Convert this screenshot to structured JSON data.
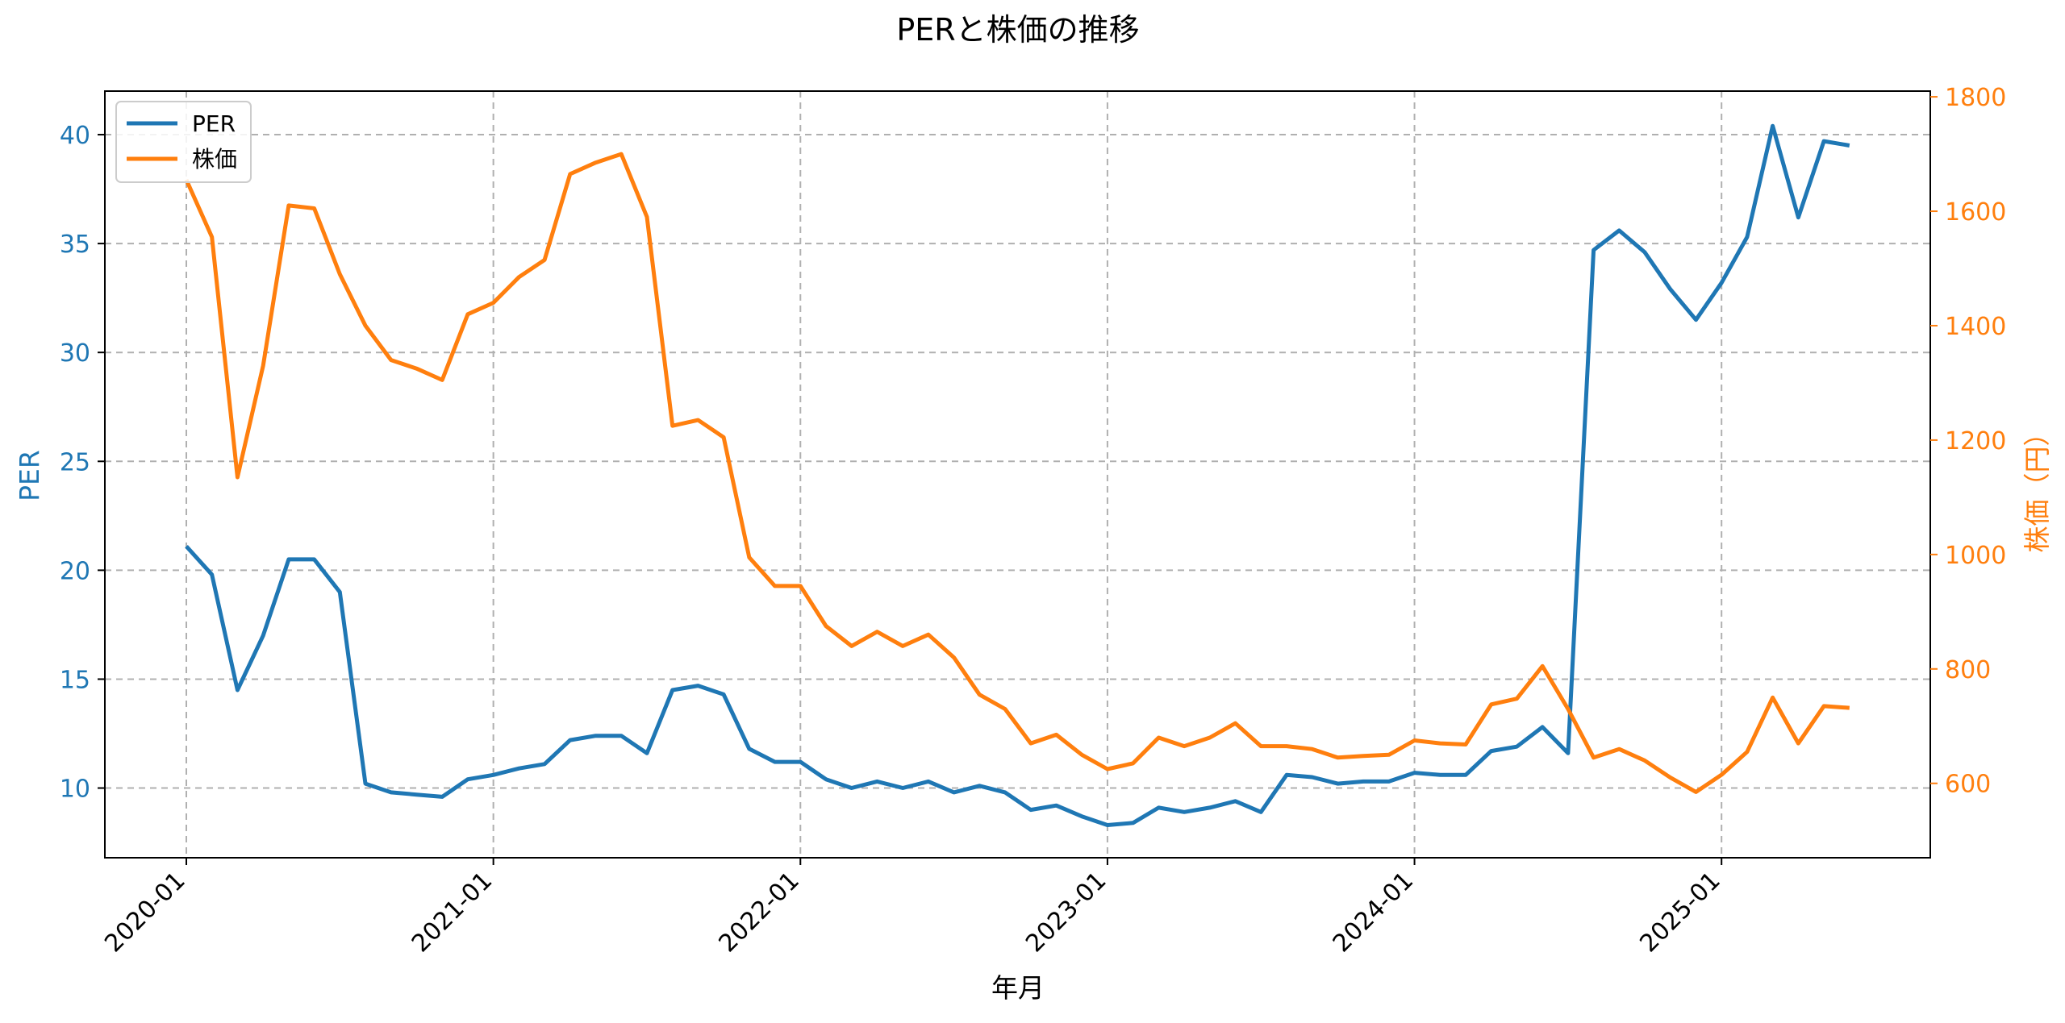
{
  "chart_data": {
    "type": "line",
    "title": "PERと株価の推移",
    "xlabel": "年月",
    "ylabel_left": "PER",
    "ylabel_right": "株価（円）",
    "ylim_left": [
      6.8,
      42
    ],
    "ylim_right": [
      470,
      1810
    ],
    "x_tick_labels": [
      "2020-01",
      "2021-01",
      "2022-01",
      "2023-01",
      "2024-01",
      "2025-01"
    ],
    "y_left_ticks": [
      10,
      15,
      20,
      25,
      30,
      35,
      40
    ],
    "y_right_ticks": [
      600,
      800,
      1000,
      1200,
      1400,
      1600,
      1800
    ],
    "grid": true,
    "legend_position": "upper-left",
    "colors": {
      "per": "#1f77b4",
      "price": "#ff7f0e"
    },
    "x_months_start": "2020-01",
    "series": [
      {
        "name": "PER",
        "axis": "left",
        "values": [
          21.1,
          19.8,
          14.5,
          17.0,
          20.5,
          20.5,
          19.0,
          10.2,
          9.8,
          9.7,
          9.6,
          10.4,
          10.6,
          10.9,
          11.1,
          12.2,
          12.4,
          12.4,
          11.6,
          14.5,
          14.7,
          14.3,
          11.8,
          11.2,
          11.2,
          10.4,
          10.0,
          10.3,
          10.0,
          10.3,
          9.8,
          10.1,
          9.8,
          9.0,
          9.2,
          8.7,
          8.3,
          8.4,
          9.1,
          8.9,
          9.1,
          9.4,
          8.9,
          10.6,
          10.5,
          10.2,
          10.3,
          10.3,
          10.7,
          10.6,
          10.6,
          11.7,
          11.9,
          12.8,
          11.6,
          34.7,
          35.6,
          34.6,
          32.9,
          31.5,
          33.2,
          35.3,
          40.4,
          36.2,
          39.7,
          39.5
        ]
      },
      {
        "name": "株価",
        "axis": "right",
        "values": [
          1655,
          1555,
          1135,
          1330,
          1610,
          1605,
          1490,
          1400,
          1340,
          1325,
          1305,
          1420,
          1440,
          1485,
          1515,
          1665,
          1685,
          1700,
          1590,
          1225,
          1235,
          1205,
          995,
          945,
          945,
          875,
          840,
          865,
          840,
          860,
          820,
          755,
          730,
          670,
          685,
          650,
          625,
          635,
          680,
          665,
          680,
          705,
          665,
          665,
          660,
          645,
          648,
          650,
          675,
          670,
          668,
          738,
          748,
          805,
          730,
          645,
          660,
          640,
          610,
          585,
          615,
          655,
          750,
          670,
          735,
          732
        ]
      }
    ]
  }
}
